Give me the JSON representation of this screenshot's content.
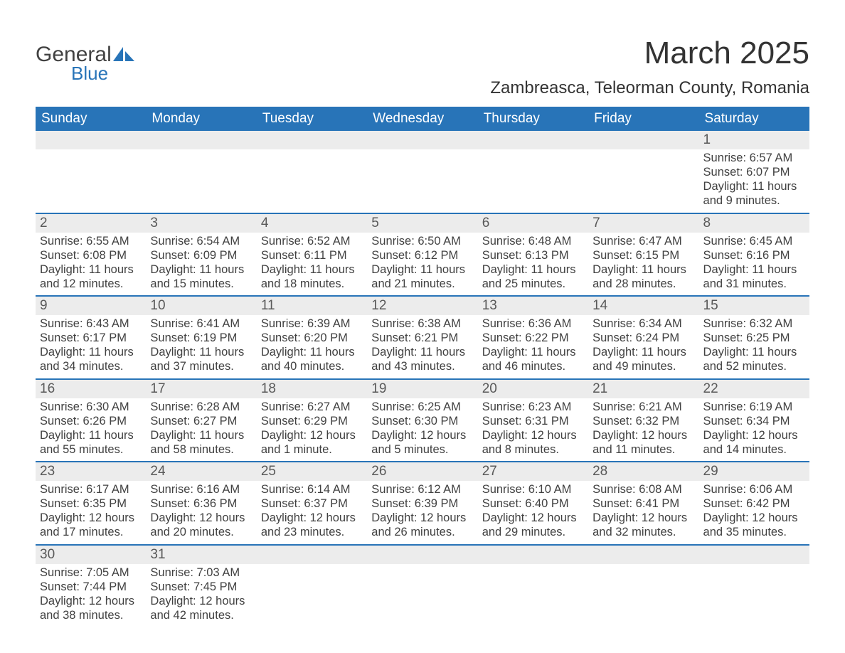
{
  "logo": {
    "word1": "General",
    "word2": "Blue"
  },
  "title": "March 2025",
  "location": "Zambreasca, Teleorman County, Romania",
  "colors": {
    "header_bg": "#2874b8",
    "header_text": "#ffffff",
    "bar_bg": "#ececec",
    "row_border": "#2874b8",
    "body_text": "#414141",
    "daynum_text": "#595959"
  },
  "fontsizes": {
    "title_pt": 44,
    "location_pt": 24,
    "dayheader_pt": 19,
    "daynum_pt": 19,
    "details_pt": 16.5
  },
  "day_headers": [
    "Sunday",
    "Monday",
    "Tuesday",
    "Wednesday",
    "Thursday",
    "Friday",
    "Saturday"
  ],
  "weeks": [
    [
      {
        "day": "",
        "sunrise": "",
        "sunset": "",
        "daylight_a": "",
        "daylight_b": ""
      },
      {
        "day": "",
        "sunrise": "",
        "sunset": "",
        "daylight_a": "",
        "daylight_b": ""
      },
      {
        "day": "",
        "sunrise": "",
        "sunset": "",
        "daylight_a": "",
        "daylight_b": ""
      },
      {
        "day": "",
        "sunrise": "",
        "sunset": "",
        "daylight_a": "",
        "daylight_b": ""
      },
      {
        "day": "",
        "sunrise": "",
        "sunset": "",
        "daylight_a": "",
        "daylight_b": ""
      },
      {
        "day": "",
        "sunrise": "",
        "sunset": "",
        "daylight_a": "",
        "daylight_b": ""
      },
      {
        "day": "1",
        "sunrise": "Sunrise: 6:57 AM",
        "sunset": "Sunset: 6:07 PM",
        "daylight_a": "Daylight: 11 hours",
        "daylight_b": "and 9 minutes."
      }
    ],
    [
      {
        "day": "2",
        "sunrise": "Sunrise: 6:55 AM",
        "sunset": "Sunset: 6:08 PM",
        "daylight_a": "Daylight: 11 hours",
        "daylight_b": "and 12 minutes."
      },
      {
        "day": "3",
        "sunrise": "Sunrise: 6:54 AM",
        "sunset": "Sunset: 6:09 PM",
        "daylight_a": "Daylight: 11 hours",
        "daylight_b": "and 15 minutes."
      },
      {
        "day": "4",
        "sunrise": "Sunrise: 6:52 AM",
        "sunset": "Sunset: 6:11 PM",
        "daylight_a": "Daylight: 11 hours",
        "daylight_b": "and 18 minutes."
      },
      {
        "day": "5",
        "sunrise": "Sunrise: 6:50 AM",
        "sunset": "Sunset: 6:12 PM",
        "daylight_a": "Daylight: 11 hours",
        "daylight_b": "and 21 minutes."
      },
      {
        "day": "6",
        "sunrise": "Sunrise: 6:48 AM",
        "sunset": "Sunset: 6:13 PM",
        "daylight_a": "Daylight: 11 hours",
        "daylight_b": "and 25 minutes."
      },
      {
        "day": "7",
        "sunrise": "Sunrise: 6:47 AM",
        "sunset": "Sunset: 6:15 PM",
        "daylight_a": "Daylight: 11 hours",
        "daylight_b": "and 28 minutes."
      },
      {
        "day": "8",
        "sunrise": "Sunrise: 6:45 AM",
        "sunset": "Sunset: 6:16 PM",
        "daylight_a": "Daylight: 11 hours",
        "daylight_b": "and 31 minutes."
      }
    ],
    [
      {
        "day": "9",
        "sunrise": "Sunrise: 6:43 AM",
        "sunset": "Sunset: 6:17 PM",
        "daylight_a": "Daylight: 11 hours",
        "daylight_b": "and 34 minutes."
      },
      {
        "day": "10",
        "sunrise": "Sunrise: 6:41 AM",
        "sunset": "Sunset: 6:19 PM",
        "daylight_a": "Daylight: 11 hours",
        "daylight_b": "and 37 minutes."
      },
      {
        "day": "11",
        "sunrise": "Sunrise: 6:39 AM",
        "sunset": "Sunset: 6:20 PM",
        "daylight_a": "Daylight: 11 hours",
        "daylight_b": "and 40 minutes."
      },
      {
        "day": "12",
        "sunrise": "Sunrise: 6:38 AM",
        "sunset": "Sunset: 6:21 PM",
        "daylight_a": "Daylight: 11 hours",
        "daylight_b": "and 43 minutes."
      },
      {
        "day": "13",
        "sunrise": "Sunrise: 6:36 AM",
        "sunset": "Sunset: 6:22 PM",
        "daylight_a": "Daylight: 11 hours",
        "daylight_b": "and 46 minutes."
      },
      {
        "day": "14",
        "sunrise": "Sunrise: 6:34 AM",
        "sunset": "Sunset: 6:24 PM",
        "daylight_a": "Daylight: 11 hours",
        "daylight_b": "and 49 minutes."
      },
      {
        "day": "15",
        "sunrise": "Sunrise: 6:32 AM",
        "sunset": "Sunset: 6:25 PM",
        "daylight_a": "Daylight: 11 hours",
        "daylight_b": "and 52 minutes."
      }
    ],
    [
      {
        "day": "16",
        "sunrise": "Sunrise: 6:30 AM",
        "sunset": "Sunset: 6:26 PM",
        "daylight_a": "Daylight: 11 hours",
        "daylight_b": "and 55 minutes."
      },
      {
        "day": "17",
        "sunrise": "Sunrise: 6:28 AM",
        "sunset": "Sunset: 6:27 PM",
        "daylight_a": "Daylight: 11 hours",
        "daylight_b": "and 58 minutes."
      },
      {
        "day": "18",
        "sunrise": "Sunrise: 6:27 AM",
        "sunset": "Sunset: 6:29 PM",
        "daylight_a": "Daylight: 12 hours",
        "daylight_b": "and 1 minute."
      },
      {
        "day": "19",
        "sunrise": "Sunrise: 6:25 AM",
        "sunset": "Sunset: 6:30 PM",
        "daylight_a": "Daylight: 12 hours",
        "daylight_b": "and 5 minutes."
      },
      {
        "day": "20",
        "sunrise": "Sunrise: 6:23 AM",
        "sunset": "Sunset: 6:31 PM",
        "daylight_a": "Daylight: 12 hours",
        "daylight_b": "and 8 minutes."
      },
      {
        "day": "21",
        "sunrise": "Sunrise: 6:21 AM",
        "sunset": "Sunset: 6:32 PM",
        "daylight_a": "Daylight: 12 hours",
        "daylight_b": "and 11 minutes."
      },
      {
        "day": "22",
        "sunrise": "Sunrise: 6:19 AM",
        "sunset": "Sunset: 6:34 PM",
        "daylight_a": "Daylight: 12 hours",
        "daylight_b": "and 14 minutes."
      }
    ],
    [
      {
        "day": "23",
        "sunrise": "Sunrise: 6:17 AM",
        "sunset": "Sunset: 6:35 PM",
        "daylight_a": "Daylight: 12 hours",
        "daylight_b": "and 17 minutes."
      },
      {
        "day": "24",
        "sunrise": "Sunrise: 6:16 AM",
        "sunset": "Sunset: 6:36 PM",
        "daylight_a": "Daylight: 12 hours",
        "daylight_b": "and 20 minutes."
      },
      {
        "day": "25",
        "sunrise": "Sunrise: 6:14 AM",
        "sunset": "Sunset: 6:37 PM",
        "daylight_a": "Daylight: 12 hours",
        "daylight_b": "and 23 minutes."
      },
      {
        "day": "26",
        "sunrise": "Sunrise: 6:12 AM",
        "sunset": "Sunset: 6:39 PM",
        "daylight_a": "Daylight: 12 hours",
        "daylight_b": "and 26 minutes."
      },
      {
        "day": "27",
        "sunrise": "Sunrise: 6:10 AM",
        "sunset": "Sunset: 6:40 PM",
        "daylight_a": "Daylight: 12 hours",
        "daylight_b": "and 29 minutes."
      },
      {
        "day": "28",
        "sunrise": "Sunrise: 6:08 AM",
        "sunset": "Sunset: 6:41 PM",
        "daylight_a": "Daylight: 12 hours",
        "daylight_b": "and 32 minutes."
      },
      {
        "day": "29",
        "sunrise": "Sunrise: 6:06 AM",
        "sunset": "Sunset: 6:42 PM",
        "daylight_a": "Daylight: 12 hours",
        "daylight_b": "and 35 minutes."
      }
    ],
    [
      {
        "day": "30",
        "sunrise": "Sunrise: 7:05 AM",
        "sunset": "Sunset: 7:44 PM",
        "daylight_a": "Daylight: 12 hours",
        "daylight_b": "and 38 minutes."
      },
      {
        "day": "31",
        "sunrise": "Sunrise: 7:03 AM",
        "sunset": "Sunset: 7:45 PM",
        "daylight_a": "Daylight: 12 hours",
        "daylight_b": "and 42 minutes."
      },
      {
        "day": "",
        "sunrise": "",
        "sunset": "",
        "daylight_a": "",
        "daylight_b": ""
      },
      {
        "day": "",
        "sunrise": "",
        "sunset": "",
        "daylight_a": "",
        "daylight_b": ""
      },
      {
        "day": "",
        "sunrise": "",
        "sunset": "",
        "daylight_a": "",
        "daylight_b": ""
      },
      {
        "day": "",
        "sunrise": "",
        "sunset": "",
        "daylight_a": "",
        "daylight_b": ""
      },
      {
        "day": "",
        "sunrise": "",
        "sunset": "",
        "daylight_a": "",
        "daylight_b": ""
      }
    ]
  ]
}
